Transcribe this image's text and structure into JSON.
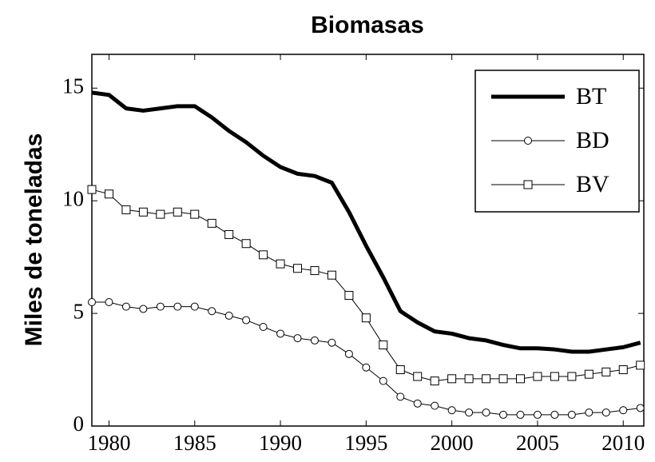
{
  "chart_data": {
    "type": "line",
    "title": "Biomasas",
    "ylabel": "Miles de toneladas",
    "x": [
      1979,
      1980,
      1981,
      1982,
      1983,
      1984,
      1985,
      1986,
      1987,
      1988,
      1989,
      1990,
      1991,
      1992,
      1993,
      1994,
      1995,
      1996,
      1997,
      1998,
      1999,
      2000,
      2001,
      2002,
      2003,
      2004,
      2005,
      2006,
      2007,
      2008,
      2009,
      2010,
      2011
    ],
    "series": [
      {
        "name": "BT",
        "color": "#000000",
        "linewidth": 5,
        "marker": "none",
        "values": [
          14.8,
          14.7,
          14.1,
          14.0,
          14.1,
          14.2,
          14.2,
          13.7,
          13.1,
          12.6,
          12.0,
          11.5,
          11.2,
          11.1,
          10.8,
          9.5,
          8.0,
          6.6,
          5.1,
          4.6,
          4.2,
          4.1,
          3.9,
          3.8,
          3.6,
          3.45,
          3.45,
          3.4,
          3.3,
          3.3,
          3.4,
          3.5,
          3.7
        ]
      },
      {
        "name": "BD",
        "color": "#000000",
        "linewidth": 1,
        "marker": "circle",
        "values": [
          5.5,
          5.5,
          5.3,
          5.2,
          5.3,
          5.3,
          5.3,
          5.1,
          4.9,
          4.7,
          4.4,
          4.1,
          3.9,
          3.8,
          3.7,
          3.2,
          2.6,
          2.0,
          1.3,
          1.0,
          0.9,
          0.7,
          0.6,
          0.6,
          0.5,
          0.5,
          0.5,
          0.5,
          0.5,
          0.6,
          0.6,
          0.7,
          0.8
        ]
      },
      {
        "name": "BV",
        "color": "#000000",
        "linewidth": 1,
        "marker": "square",
        "values": [
          10.5,
          10.3,
          9.6,
          9.5,
          9.4,
          9.5,
          9.4,
          9.0,
          8.5,
          8.1,
          7.6,
          7.2,
          7.0,
          6.9,
          6.7,
          5.8,
          4.8,
          3.6,
          2.5,
          2.2,
          2.0,
          2.1,
          2.1,
          2.1,
          2.1,
          2.1,
          2.2,
          2.2,
          2.2,
          2.3,
          2.4,
          2.5,
          2.7
        ]
      }
    ],
    "xlim": [
      1979,
      2011.2
    ],
    "xticks": [
      1980,
      1985,
      1990,
      1995,
      2000,
      2005,
      2010
    ],
    "ylim": [
      0,
      16.5
    ],
    "yticks": [
      0,
      5,
      10,
      15
    ],
    "legend": "top-right",
    "grid": false
  }
}
